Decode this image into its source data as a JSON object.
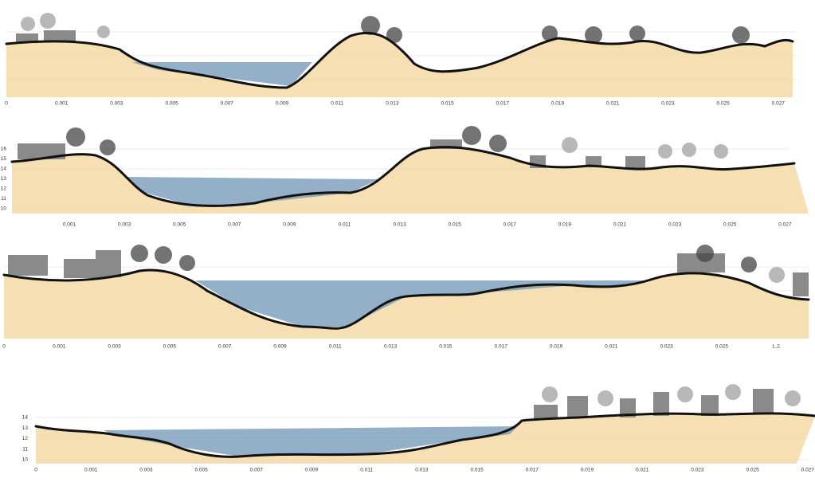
{
  "sections": [
    {
      "x_labels": [
        "0",
        "0.001",
        "0.003",
        "0.005",
        "0.007",
        "0.009",
        "0.011",
        "0.013",
        "0.015",
        "0.017",
        "0.019",
        "0.021",
        "0.023",
        "0.025",
        "0.027"
      ],
      "y_labels": []
    },
    {
      "x_labels": [
        "0.001",
        "0.003",
        "0.005",
        "0.007",
        "0.009",
        "0.011",
        "0.013",
        "0.015",
        "0.017",
        "0.019",
        "0.021",
        "0.023",
        "0.025",
        "0.027"
      ],
      "y_labels": [
        "16",
        "15",
        "14",
        "13",
        "12",
        "11",
        "10"
      ]
    },
    {
      "x_labels": [
        "0",
        "0.001",
        "0.003",
        "0.005",
        "0.007",
        "0.009",
        "0.011",
        "0.013",
        "0.015",
        "0.017",
        "0.019",
        "0.021",
        "0.023",
        "0.025",
        "L.2."
      ],
      "y_labels": []
    },
    {
      "x_labels": [
        "0",
        "0.001",
        "0.003",
        "0.005",
        "0.007",
        "0.009",
        "0.011",
        "0.013",
        "0.015",
        "0.017",
        "0.019",
        "0.021",
        "0.023",
        "0.025",
        "0.027"
      ],
      "y_labels": [
        "14",
        "13",
        "12",
        "11",
        "10"
      ]
    }
  ]
}
